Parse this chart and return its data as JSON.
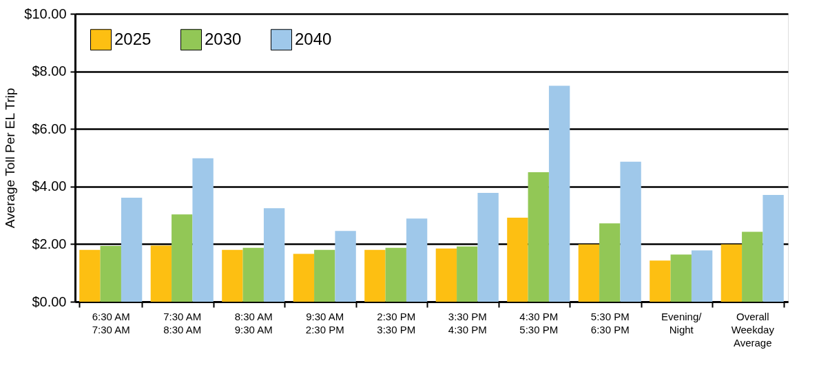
{
  "chart_data": {
    "type": "bar",
    "ylabel": "Average Toll Per EL Trip",
    "categories": [
      "6:30 AM\n7:30 AM",
      "7:30 AM\n8:30 AM",
      "8:30 AM\n9:30 AM",
      "9:30 AM\n2:30 PM",
      "2:30 PM\n3:30 PM",
      "3:30 PM\n4:30 PM",
      "4:30 PM\n5:30 PM",
      "5:30 PM\n6:30 PM",
      "Evening/\nNight",
      "Overall\nWeekday\nAverage"
    ],
    "series": [
      {
        "name": "2025",
        "color": "#fdbf12",
        "values": [
          1.8,
          1.95,
          1.8,
          1.66,
          1.8,
          1.85,
          2.92,
          1.99,
          1.43,
          1.99
        ]
      },
      {
        "name": "2030",
        "color": "#92c756",
        "values": [
          1.94,
          3.03,
          1.87,
          1.8,
          1.87,
          1.92,
          4.5,
          2.72,
          1.64,
          2.43
        ]
      },
      {
        "name": "2040",
        "color": "#9fc8ea",
        "values": [
          3.61,
          4.98,
          3.25,
          2.46,
          2.89,
          3.78,
          7.5,
          4.86,
          1.78,
          3.71
        ]
      }
    ],
    "ylim": [
      0,
      10
    ],
    "yticks": [
      {
        "value": 0,
        "label": "$0.00"
      },
      {
        "value": 2,
        "label": "$2.00"
      },
      {
        "value": 4,
        "label": "$4.00"
      },
      {
        "value": 6,
        "label": "$6.00"
      },
      {
        "value": 8,
        "label": "$8.00"
      },
      {
        "value": 10,
        "label": "$10.00"
      }
    ],
    "grid": "y",
    "legend": "top left"
  }
}
